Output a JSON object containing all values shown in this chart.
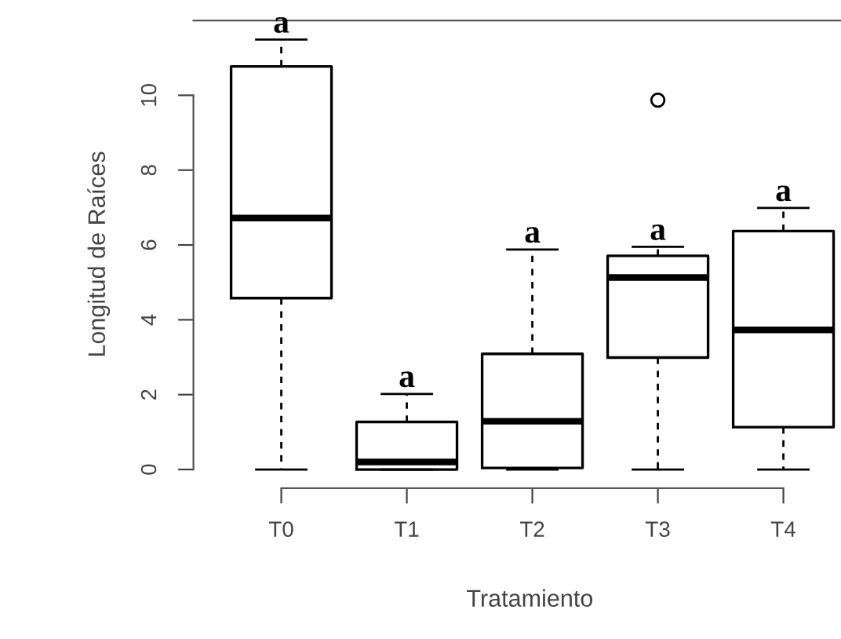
{
  "chart_data": {
    "type": "box",
    "xlabel": "Tratamiento",
    "ylabel": "Longitud de Raíces",
    "categories": [
      "T0",
      "T1",
      "T2",
      "T3",
      "T4"
    ],
    "boxes": [
      {
        "low": 0,
        "q1": 4.58,
        "median": 6.72,
        "q3": 10.77,
        "high": 11.49
      },
      {
        "low": 0,
        "q1": 0,
        "median": 0.2,
        "q3": 1.27,
        "high": 2.02
      },
      {
        "low": 0,
        "q1": 0.04,
        "median": 1.29,
        "q3": 3.09,
        "high": 5.88
      },
      {
        "low": 0,
        "q1": 2.99,
        "median": 5.13,
        "q3": 5.71,
        "high": 5.95,
        "outliers": [
          9.87
        ]
      },
      {
        "low": 0,
        "q1": 1.13,
        "median": 3.73,
        "q3": 6.37,
        "high": 6.99
      }
    ],
    "ylim": [
      -0.5,
      12
    ],
    "yticks": [
      0,
      2,
      4,
      6,
      8,
      10
    ],
    "grid": false,
    "legend": false,
    "annotations": [
      {
        "text": "a",
        "x": "T0",
        "y": 11.49
      },
      {
        "text": "a",
        "x": "T1",
        "y": 2.02
      },
      {
        "text": "a",
        "x": "T2",
        "y": 5.88
      },
      {
        "text": "a",
        "x": "T3",
        "y": 5.95
      },
      {
        "text": "a",
        "x": "T4",
        "y": 6.99
      }
    ]
  }
}
